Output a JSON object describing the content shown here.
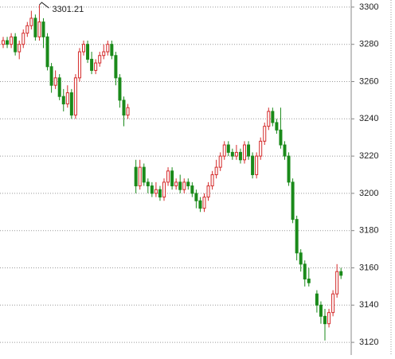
{
  "chart_data": {
    "type": "candlestick",
    "categories": [
      null,
      null,
      null,
      null,
      null,
      null,
      null,
      null,
      null,
      null,
      null,
      null,
      null,
      null,
      null,
      null,
      null,
      null,
      null,
      null,
      null,
      null,
      null,
      null,
      null,
      null,
      null,
      null,
      null,
      null,
      null,
      null,
      null,
      null,
      null,
      null,
      null,
      null,
      null,
      null,
      null,
      null,
      null,
      null,
      null,
      null,
      null,
      null,
      null,
      null,
      null,
      null,
      null,
      null,
      null,
      null,
      null,
      null,
      null,
      null,
      null,
      null,
      null,
      null,
      null,
      null,
      null,
      null,
      null,
      null,
      null,
      null,
      null,
      null,
      null,
      null,
      null,
      null,
      null,
      null,
      null,
      null,
      null,
      null,
      null
    ],
    "open": [
      3280,
      3282,
      3280,
      3284,
      3276,
      3280,
      3286,
      3290,
      3294,
      3284,
      3292,
      3284,
      3268,
      3258,
      3262,
      3252,
      3248,
      3254,
      3242,
      3262,
      3276,
      3280,
      3272,
      3266,
      3270,
      3274,
      3276,
      3280,
      3274,
      3262,
      3250,
      3242,
      null,
      3214,
      3204,
      3214,
      3206,
      3204,
      3200,
      3202,
      3198,
      3206,
      3212,
      3204,
      3206,
      3202,
      3206,
      3204,
      3200,
      3196,
      3192,
      3198,
      3204,
      3210,
      3214,
      3220,
      3226,
      3222,
      3220,
      3222,
      3218,
      3226,
      3220,
      3210,
      3220,
      3228,
      3236,
      3244,
      3238,
      3234,
      3226,
      3220,
      3206,
      3186,
      3168,
      3162,
      3154,
      null,
      3146,
      3140,
      3134,
      3130,
      3136,
      3146,
      3158
    ],
    "high": [
      3284,
      3284,
      3286,
      3286,
      3282,
      3288,
      3292,
      3298,
      3296,
      3301.21,
      3294,
      3286,
      3270,
      3266,
      3264,
      3256,
      3258,
      3256,
      3264,
      3278,
      3282,
      3282,
      3276,
      3272,
      3276,
      3280,
      3282,
      3282,
      3276,
      3264,
      3252,
      3248,
      null,
      3218,
      3218,
      3216,
      3208,
      3206,
      3206,
      3204,
      3208,
      3214,
      3214,
      3208,
      3210,
      3208,
      3208,
      3206,
      3202,
      3198,
      3200,
      3206,
      3212,
      3218,
      3222,
      3228,
      3228,
      3224,
      3226,
      3224,
      3228,
      3228,
      3222,
      3222,
      3230,
      3238,
      3246,
      3246,
      3240,
      3246,
      3228,
      3222,
      3208,
      3188,
      3170,
      3164,
      3160,
      null,
      3148,
      3142,
      3138,
      3138,
      3148,
      3162,
      3160
    ],
    "low": [
      3278,
      3278,
      3278,
      3274,
      3272,
      3278,
      3284,
      3288,
      3282,
      3282,
      3278,
      3266,
      3254,
      3256,
      3250,
      3244,
      3246,
      3240,
      3240,
      3260,
      3274,
      3270,
      3264,
      3264,
      3268,
      3272,
      3274,
      3272,
      3258,
      3246,
      3236,
      3240,
      null,
      3200,
      3202,
      3204,
      3200,
      3198,
      3198,
      3196,
      3196,
      3204,
      3202,
      3202,
      3200,
      3200,
      3202,
      3198,
      3192,
      3190,
      3190,
      3196,
      3202,
      3208,
      3212,
      3218,
      3220,
      3218,
      3218,
      3216,
      3216,
      3218,
      3208,
      3208,
      3218,
      3226,
      3234,
      3236,
      3232,
      3224,
      3218,
      3204,
      3184,
      3164,
      3158,
      3150,
      3150,
      null,
      3136,
      3130,
      3121,
      3128,
      3134,
      3144,
      3154
    ],
    "close": [
      3282,
      3280,
      3284,
      3276,
      3280,
      3286,
      3290,
      3294,
      3284,
      3292,
      3284,
      3268,
      3258,
      3262,
      3252,
      3248,
      3254,
      3242,
      3262,
      3276,
      3280,
      3272,
      3266,
      3270,
      3274,
      3276,
      3280,
      3274,
      3262,
      3250,
      3242,
      3246,
      null,
      3204,
      3214,
      3206,
      3204,
      3200,
      3202,
      3198,
      3206,
      3212,
      3204,
      3206,
      3202,
      3206,
      3204,
      3200,
      3196,
      3192,
      3198,
      3204,
      3210,
      3214,
      3220,
      3226,
      3222,
      3220,
      3222,
      3218,
      3226,
      3220,
      3210,
      3220,
      3228,
      3236,
      3244,
      3238,
      3234,
      3226,
      3220,
      3206,
      3186,
      3168,
      3162,
      3154,
      3152,
      null,
      3140,
      3134,
      3130,
      3136,
      3146,
      3158,
      3156
    ],
    "up_color": "#d42a2a",
    "down_color": "#1a8a1a",
    "annotation": "3301.21",
    "ylim": [
      3113.2,
      3303.8
    ],
    "yticks": [
      3120,
      3140,
      3160,
      3180,
      3200,
      3220,
      3240,
      3260,
      3280,
      3300
    ],
    "grid": true
  }
}
